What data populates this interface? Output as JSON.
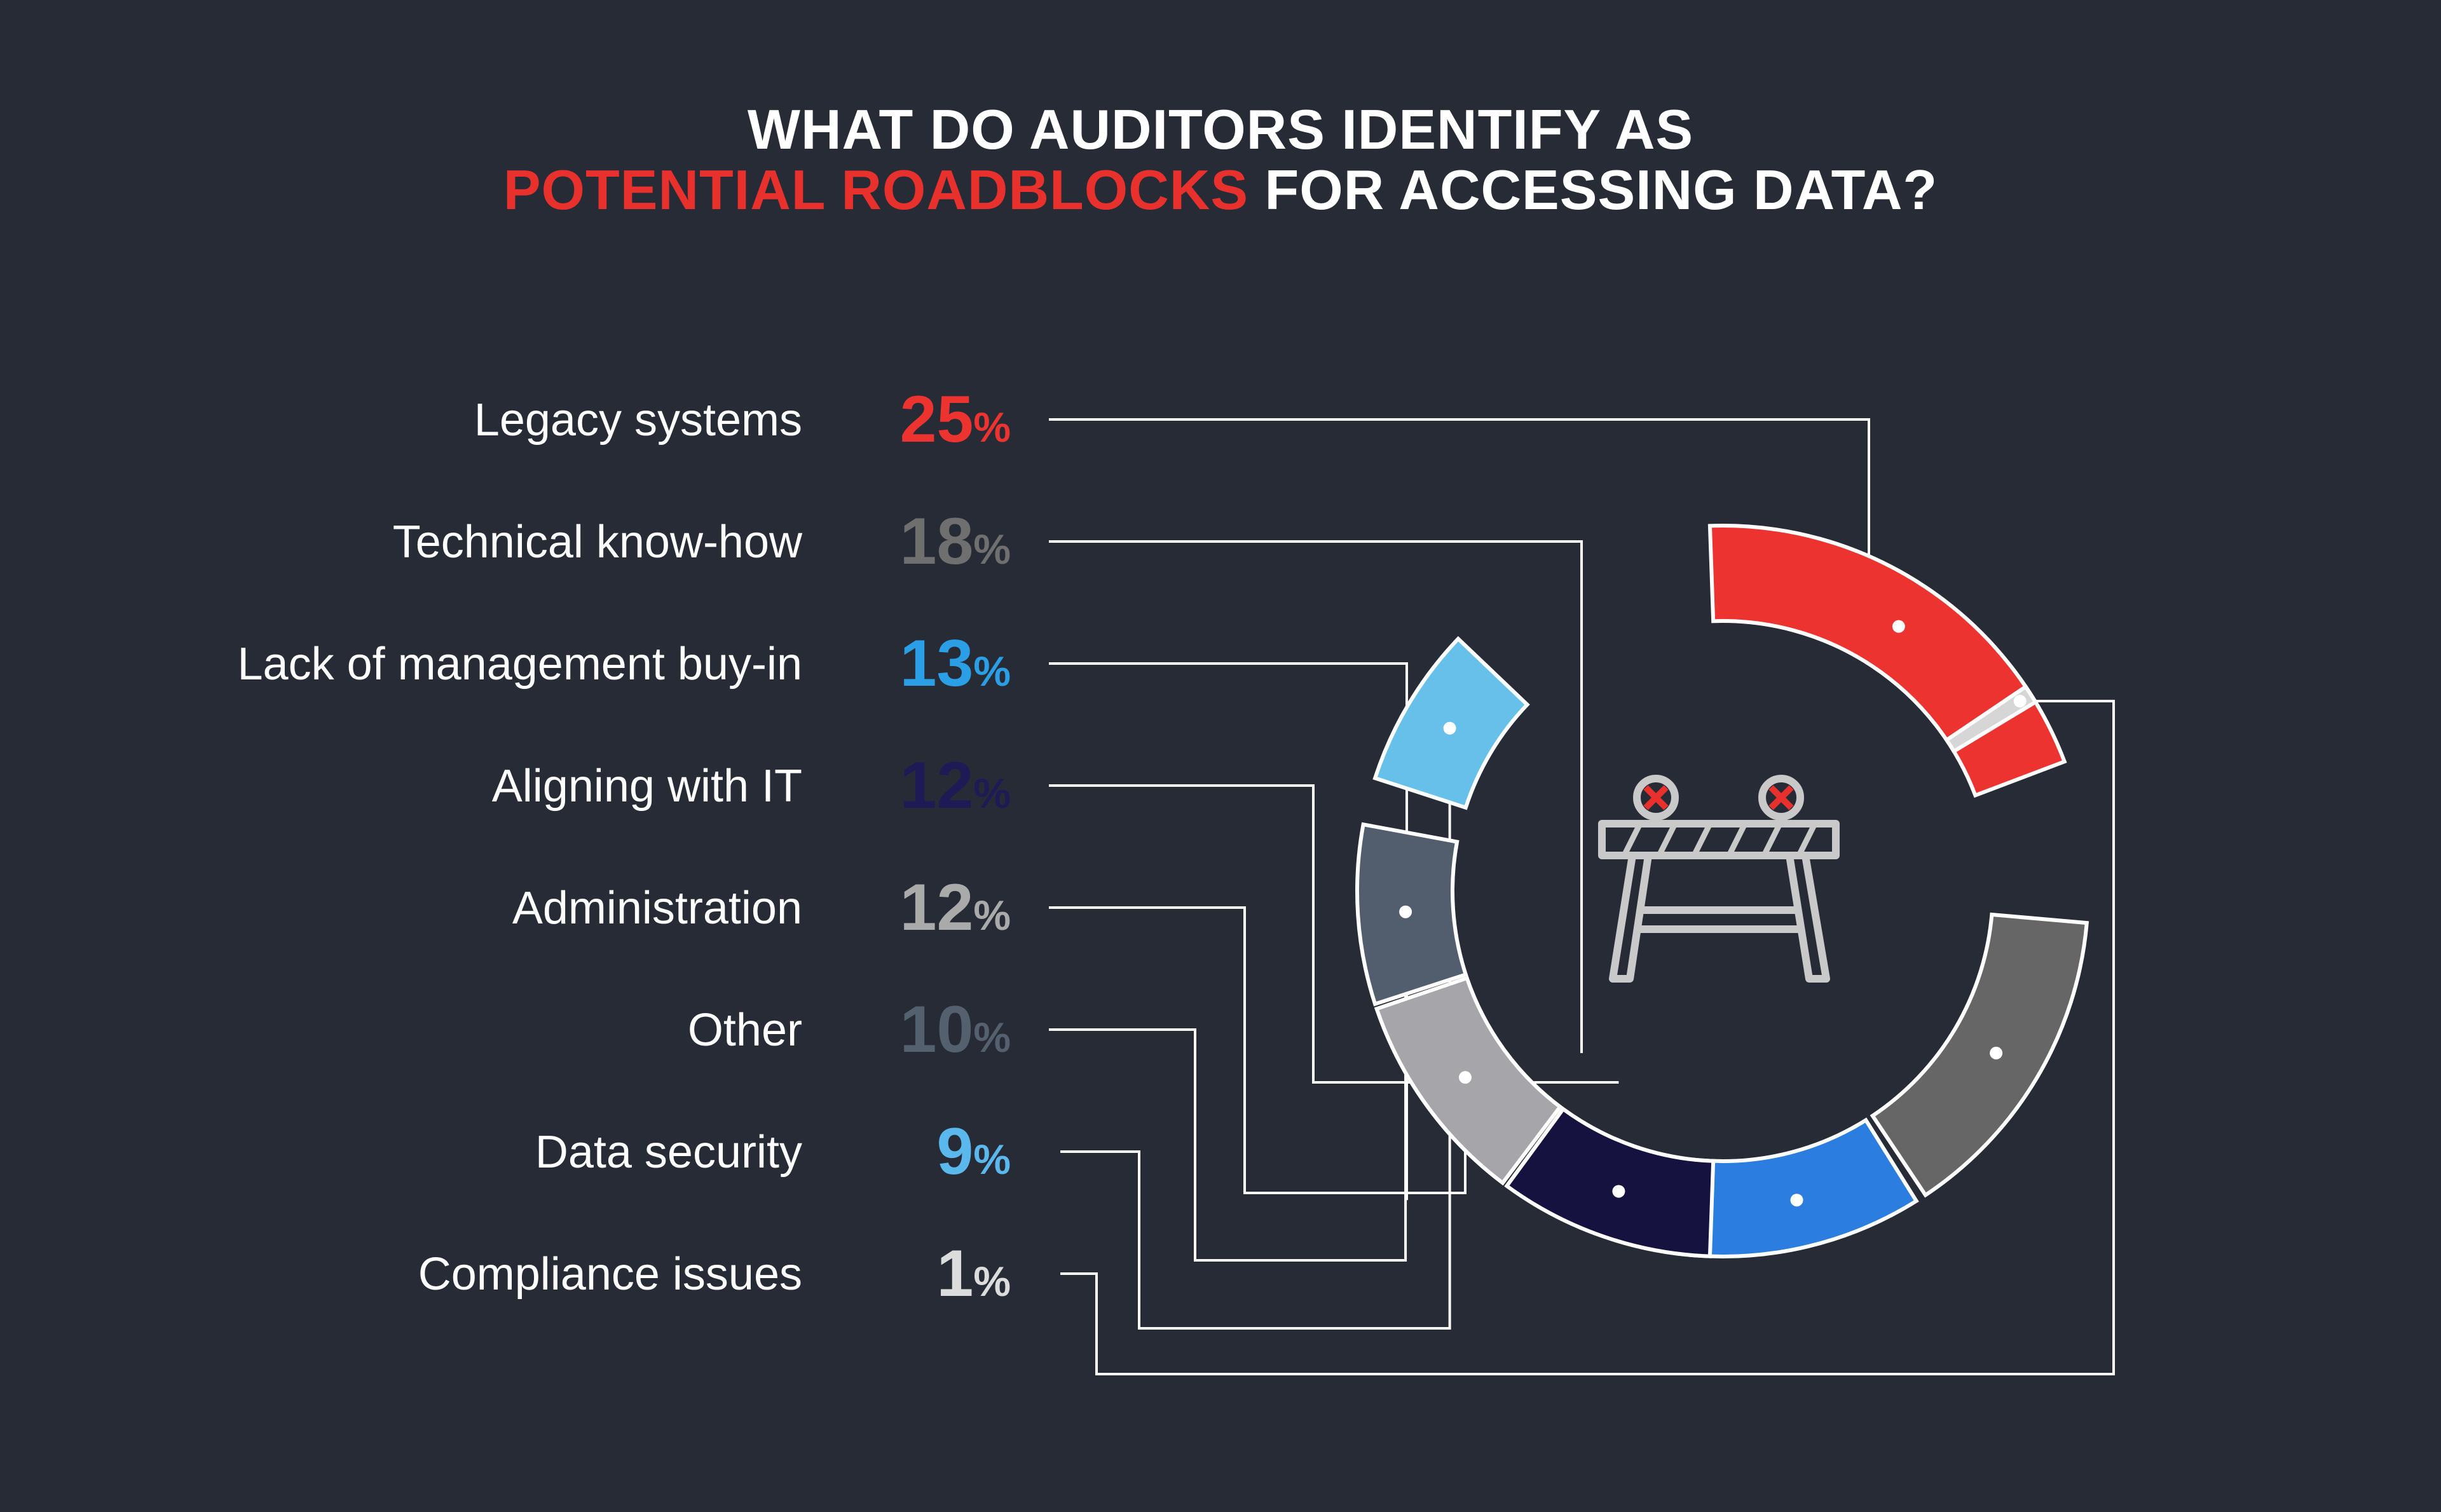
{
  "title": {
    "line1": "WHAT DO AUDITORS IDENTIFY AS",
    "line2_highlight": "POTENTIAL ROADBLOCKS",
    "line2_rest": " FOR ACCESSING DATA?"
  },
  "colors": {
    "background": "#272b35",
    "title_accent": "#e8302d",
    "label_text": "#ffffff",
    "connector": "#ffffff"
  },
  "center_icon": "road-barrier-icon",
  "chart_data": {
    "type": "pie",
    "style": "donut",
    "categories": [
      "Legacy systems",
      "Technical know-how",
      "Lack of management buy-in",
      "Aligning with IT",
      "Administration",
      "Other",
      "Data security",
      "Compliance issues"
    ],
    "values": [
      25,
      18,
      13,
      12,
      12,
      10,
      9,
      1
    ],
    "unit": "%",
    "value_labels": [
      "25",
      "18",
      "13",
      "12",
      "12",
      "10",
      "9",
      "1"
    ],
    "colors": [
      "#ed3330",
      "#666666",
      "#2b7de0",
      "#16123f",
      "#a6a6aa",
      "#525e6d",
      "#67c0ea",
      "#d6d6d6"
    ],
    "label_colors": [
      "#ed3330",
      "#6f6f6f",
      "#2b9fe6",
      "#1e1a55",
      "#aaaaaa",
      "#55606e",
      "#5bb8ec",
      "#dcdcdc"
    ]
  }
}
